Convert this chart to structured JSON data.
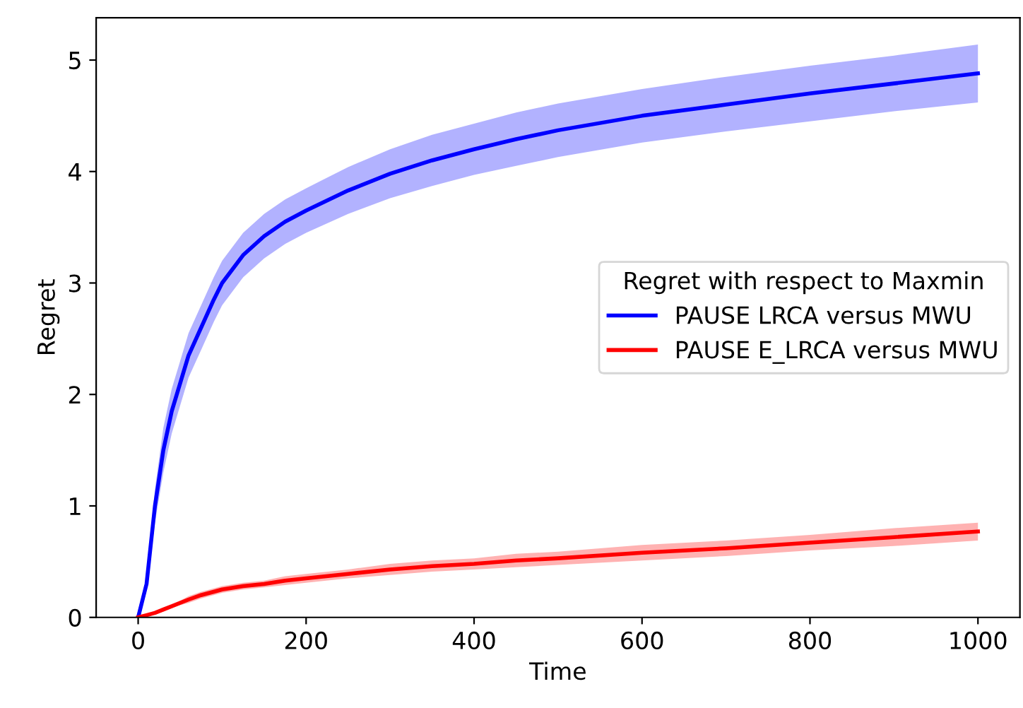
{
  "chart_data": {
    "type": "line",
    "xlabel": "Time",
    "ylabel": "Regret",
    "legend_title": "Regret with respect to Maxmin",
    "legend": "right",
    "grid": false,
    "marker": "none",
    "line_style": "solid",
    "x": [
      0,
      10,
      20,
      30,
      40,
      50,
      60,
      75,
      90,
      100,
      125,
      150,
      175,
      200,
      250,
      300,
      350,
      400,
      450,
      500,
      600,
      700,
      800,
      900,
      1000
    ],
    "xlim": [
      -50,
      1050
    ],
    "xticks": [
      0,
      200,
      400,
      600,
      800,
      1000
    ],
    "ylim": [
      0,
      5.38
    ],
    "yticks": [
      0,
      1,
      2,
      3,
      4,
      5
    ],
    "series": [
      {
        "name": "PAUSE LRCA versus MWU",
        "color": "#0000ff",
        "values": [
          0,
          0.3,
          1.0,
          1.5,
          1.85,
          2.1,
          2.35,
          2.6,
          2.85,
          3.0,
          3.25,
          3.42,
          3.55,
          3.65,
          3.83,
          3.98,
          4.1,
          4.2,
          4.29,
          4.37,
          4.5,
          4.6,
          4.7,
          4.79,
          4.88
        ],
        "lower": [
          0,
          0.25,
          0.85,
          1.3,
          1.65,
          1.9,
          2.15,
          2.4,
          2.65,
          2.8,
          3.05,
          3.22,
          3.35,
          3.45,
          3.62,
          3.76,
          3.87,
          3.97,
          4.05,
          4.13,
          4.26,
          4.36,
          4.45,
          4.54,
          4.62
        ],
        "upper": [
          0,
          0.35,
          1.15,
          1.7,
          2.05,
          2.3,
          2.55,
          2.8,
          3.05,
          3.2,
          3.45,
          3.62,
          3.75,
          3.85,
          4.04,
          4.2,
          4.33,
          4.43,
          4.53,
          4.61,
          4.74,
          4.85,
          4.95,
          5.04,
          5.14
        ]
      },
      {
        "name": "PAUSE E_LRCA versus MWU",
        "color": "#ff0000",
        "values": [
          0,
          0.02,
          0.04,
          0.07,
          0.1,
          0.13,
          0.16,
          0.2,
          0.23,
          0.25,
          0.28,
          0.3,
          0.33,
          0.35,
          0.39,
          0.43,
          0.46,
          0.48,
          0.51,
          0.53,
          0.58,
          0.62,
          0.67,
          0.72,
          0.77
        ],
        "lower": [
          0,
          0.01,
          0.03,
          0.05,
          0.08,
          0.11,
          0.13,
          0.17,
          0.2,
          0.22,
          0.25,
          0.27,
          0.29,
          0.31,
          0.35,
          0.38,
          0.41,
          0.43,
          0.45,
          0.47,
          0.51,
          0.55,
          0.6,
          0.64,
          0.69
        ],
        "upper": [
          0,
          0.03,
          0.05,
          0.09,
          0.12,
          0.15,
          0.19,
          0.23,
          0.26,
          0.28,
          0.31,
          0.33,
          0.37,
          0.39,
          0.43,
          0.48,
          0.51,
          0.53,
          0.57,
          0.59,
          0.65,
          0.69,
          0.74,
          0.8,
          0.85
        ]
      }
    ]
  }
}
